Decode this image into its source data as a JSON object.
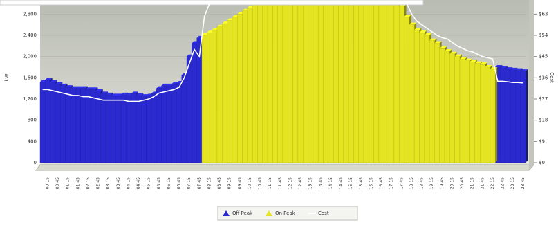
{
  "chart_data": {
    "type": "bar",
    "y_label": "kW",
    "y2_label": "Cost",
    "categories": [
      null,
      "00:15",
      null,
      "00:45",
      null,
      "01:15",
      null,
      "01:45",
      null,
      "02:15",
      null,
      "02:45",
      null,
      "03:15",
      null,
      "03:45",
      null,
      "04:15",
      null,
      "04:45",
      null,
      "05:15",
      null,
      "05:45",
      null,
      "06:15",
      null,
      "06:45",
      null,
      "07:15",
      null,
      "07:45",
      null,
      "08:15",
      null,
      "08:45",
      null,
      "09:15",
      null,
      "09:45",
      null,
      "10:15",
      null,
      "10:45",
      null,
      "11:15",
      null,
      "11:45",
      null,
      "12:15",
      null,
      "12:45",
      null,
      "13:15",
      null,
      "13:45",
      null,
      "14:15",
      null,
      "14:45",
      null,
      "15:15",
      null,
      "15:45",
      null,
      "16:15",
      null,
      "16:45",
      null,
      "17:15",
      null,
      "17:45",
      null,
      "18:15",
      null,
      "18:45",
      null,
      "19:15",
      null,
      "19:45",
      null,
      "20:15",
      null,
      "20:45",
      null,
      "21:15",
      null,
      "21:45",
      null,
      "22:15",
      null,
      "22:45",
      null,
      "23:15",
      null,
      "23:45"
    ],
    "ylim": [
      0,
      3000
    ],
    "yticks": [
      0,
      400,
      800,
      {
        "value": 1200,
        "label": "1,200"
      },
      {
        "value": 1600,
        "label": "1,600"
      },
      {
        "value": 2000,
        "label": "2,000"
      },
      {
        "value": 2400,
        "label": "2,400"
      },
      {
        "value": 2800,
        "label": "2,800"
      }
    ],
    "y2lim": [
      0,
      67.5
    ],
    "y2ticks": [
      {
        "value": 0,
        "label": "$0"
      },
      {
        "value": 9,
        "label": "$9"
      },
      {
        "value": 18,
        "label": "$18"
      },
      {
        "value": 27,
        "label": "$27"
      },
      {
        "value": 36,
        "label": "$36"
      },
      {
        "value": 45,
        "label": "$45"
      },
      {
        "value": 54,
        "label": "$54"
      },
      {
        "value": 63,
        "label": "$63"
      }
    ],
    "series": [
      {
        "name": "Off Peak",
        "color": "#2a2ad0",
        "values": [
          1520,
          1560,
          1520,
          1480,
          1450,
          1420,
          1400,
          1400,
          1400,
          1380,
          1380,
          1350,
          1300,
          1280,
          1260,
          1260,
          1280,
          1270,
          1300,
          1270,
          1250,
          1260,
          1300,
          1400,
          1450,
          1450,
          1480,
          1500,
          1650,
          2000,
          2250,
          2350,
          null,
          null,
          null,
          null,
          null,
          null,
          null,
          null,
          null,
          null,
          null,
          null,
          null,
          null,
          null,
          null,
          null,
          null,
          null,
          null,
          null,
          null,
          null,
          null,
          null,
          null,
          null,
          null,
          null,
          null,
          null,
          null,
          null,
          null,
          null,
          null,
          null,
          null,
          null,
          null,
          null,
          null,
          null,
          null,
          null,
          null,
          null,
          null,
          null,
          null,
          null,
          null,
          null,
          null,
          null,
          null,
          null,
          null,
          1800,
          1780,
          1760,
          1750,
          1740,
          1720
        ]
      },
      {
        "name": "On Peak",
        "color": "#e4e420",
        "values": [
          null,
          null,
          null,
          null,
          null,
          null,
          null,
          null,
          null,
          null,
          null,
          null,
          null,
          null,
          null,
          null,
          null,
          null,
          null,
          null,
          null,
          null,
          null,
          null,
          null,
          null,
          null,
          null,
          null,
          null,
          null,
          null,
          2400,
          2450,
          2500,
          2560,
          2620,
          2680,
          2740,
          2800,
          2860,
          2920,
          2980,
          3000,
          3000,
          3000,
          3000,
          3000,
          3000,
          3000,
          3000,
          3000,
          3000,
          3000,
          3000,
          3000,
          3000,
          3000,
          3000,
          3000,
          3000,
          3000,
          3000,
          3000,
          3000,
          3000,
          3000,
          3000,
          3000,
          3000,
          3000,
          2950,
          2750,
          2600,
          2500,
          2450,
          2400,
          2300,
          2250,
          2150,
          2100,
          2050,
          2000,
          1950,
          1920,
          1900,
          1870,
          1850,
          1800,
          1760,
          null,
          null,
          null,
          null,
          null,
          null
        ]
      },
      {
        "name": "Cost",
        "type": "line",
        "axis": "y2",
        "color": "#ffffff",
        "values": [
          31,
          31,
          30.5,
          30,
          29.5,
          29,
          28.5,
          28.5,
          28,
          28,
          27.5,
          27,
          26.5,
          26.5,
          26.5,
          26.5,
          26.5,
          26,
          26,
          26,
          26.5,
          27,
          28,
          29.5,
          30,
          30.5,
          31,
          32,
          36,
          42,
          48,
          45,
          62,
          67.5,
          67.5,
          67.5,
          67.5,
          67.5,
          67.5,
          67.5,
          67.5,
          67.5,
          67.5,
          67.5,
          67.5,
          67.5,
          67.5,
          67.5,
          67.5,
          67.5,
          67.5,
          67.5,
          67.5,
          67.5,
          67.5,
          67.5,
          67.5,
          67.5,
          67.5,
          67.5,
          67.5,
          67.5,
          67.5,
          67.5,
          67.5,
          67.5,
          67.5,
          67.5,
          67.5,
          67.5,
          67.5,
          67.5,
          67.5,
          63,
          60,
          58.5,
          57,
          55.5,
          54,
          53,
          52.5,
          51,
          49.5,
          48.5,
          47.5,
          47,
          46,
          45,
          44.5,
          44,
          34.5,
          34.5,
          34.3,
          34,
          34,
          33.8
        ]
      }
    ]
  }
}
